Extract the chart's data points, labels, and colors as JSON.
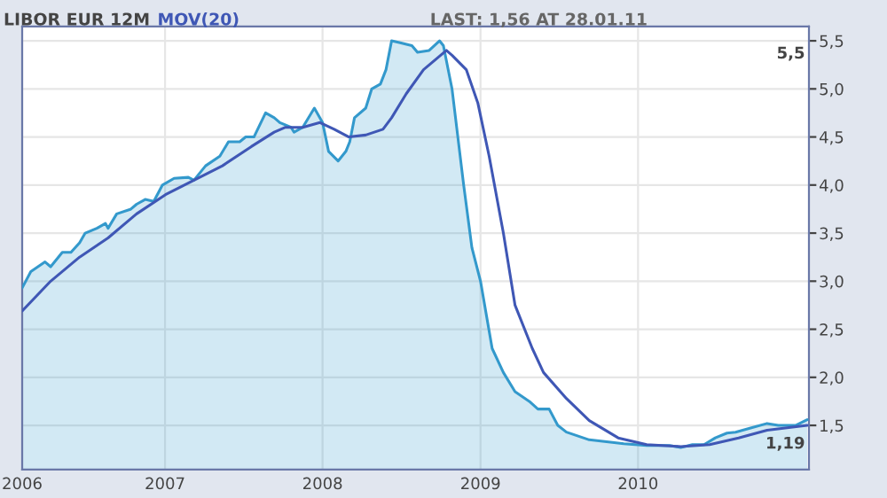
{
  "chart_data": {
    "type": "area",
    "title": "LIBOR EUR 12M",
    "annotations": [
      "LAST: 1,56 AT 28.01.11",
      "5,5",
      "1,19"
    ],
    "series": [
      {
        "name": null,
        "color": "#3399cc",
        "x": [
          "2006-02-04",
          "2006-02-24",
          "2006-03-29",
          "2006-04-11",
          "2006-05-08",
          "2006-05-28",
          "2006-06-17",
          "2006-06-30",
          "2006-07-27",
          "2006-08-16",
          "2006-08-22",
          "2006-09-11",
          "2006-10-14",
          "2006-10-27",
          "2006-11-16",
          "2006-12-06",
          "2006-12-26",
          "2007-01-22",
          "2007-02-24",
          "2007-03-09",
          "2007-04-05",
          "2007-05-08",
          "2007-05-28",
          "2007-06-23",
          "2007-07-07",
          "2007-07-26",
          "2007-08-22",
          "2007-09-11",
          "2007-09-24",
          "2007-10-20",
          "2007-10-27",
          "2007-11-16",
          "2007-12-13",
          "2008-01-01",
          "2008-01-15",
          "2008-02-06",
          "2008-02-24",
          "2008-03-04",
          "2008-03-15",
          "2008-04-10",
          "2008-04-24",
          "2008-05-14",
          "2008-05-27",
          "2008-06-09",
          "2008-06-29",
          "2008-07-26",
          "2008-08-08",
          "2008-09-04",
          "2008-09-28",
          "2008-10-07",
          "2008-10-27",
          "2008-11-23",
          "2008-12-12",
          "2009-01-01",
          "2009-01-28",
          "2009-02-23",
          "2009-03-22",
          "2009-04-24",
          "2009-05-14",
          "2009-06-09",
          "2009-06-29",
          "2009-07-19",
          "2009-09-10",
          "2009-10-20",
          "2009-11-29",
          "2010-01-21",
          "2010-03-15",
          "2010-04-10",
          "2010-05-07",
          "2010-06-03",
          "2010-06-29",
          "2010-07-26",
          "2010-08-15",
          "2010-09-17",
          "2010-10-27",
          "2010-11-22",
          "2011-01-01",
          "2011-01-28"
        ],
        "values": [
          2.93,
          3.1,
          3.2,
          3.15,
          3.3,
          3.3,
          3.4,
          3.5,
          3.55,
          3.6,
          3.55,
          3.7,
          3.75,
          3.8,
          3.85,
          3.83,
          4.0,
          4.07,
          4.08,
          4.05,
          4.2,
          4.3,
          4.45,
          4.45,
          4.5,
          4.5,
          4.75,
          4.7,
          4.65,
          4.6,
          4.55,
          4.6,
          4.8,
          4.65,
          4.35,
          4.25,
          4.35,
          4.45,
          4.7,
          4.8,
          5.0,
          5.05,
          5.2,
          5.5,
          5.48,
          5.45,
          5.38,
          5.4,
          5.5,
          5.45,
          5.0,
          4.0,
          3.35,
          3.0,
          2.3,
          2.05,
          1.85,
          1.75,
          1.67,
          1.67,
          1.5,
          1.43,
          1.35,
          1.33,
          1.31,
          1.29,
          1.29,
          1.27,
          1.3,
          1.3,
          1.37,
          1.42,
          1.43,
          1.47,
          1.52,
          1.5,
          1.5,
          1.56
        ]
      },
      {
        "name": "MOV(20)",
        "type": "line",
        "color": "#3f57b5",
        "x": [
          "2006-02-04",
          "2006-04-11",
          "2006-06-17",
          "2006-08-22",
          "2006-10-27",
          "2007-01-02",
          "2007-03-09",
          "2007-05-14",
          "2007-07-20",
          "2007-09-11",
          "2007-10-07",
          "2007-11-16",
          "2007-12-26",
          "2008-01-28",
          "2008-03-02",
          "2008-04-10",
          "2008-05-20",
          "2008-06-09",
          "2008-07-13",
          "2008-08-22",
          "2008-10-14",
          "2008-10-27",
          "2008-11-29",
          "2008-12-26",
          "2009-01-21",
          "2009-02-23",
          "2009-03-22",
          "2009-05-01",
          "2009-05-27",
          "2009-07-19",
          "2009-09-10",
          "2009-11-16",
          "2010-01-21",
          "2010-04-10",
          "2010-06-16",
          "2010-08-22",
          "2010-10-27",
          "2011-01-28"
        ],
        "values": [
          2.69,
          3.0,
          3.25,
          3.45,
          3.7,
          3.9,
          4.05,
          4.2,
          4.4,
          4.55,
          4.6,
          4.6,
          4.65,
          4.58,
          4.5,
          4.52,
          4.58,
          4.7,
          4.95,
          5.2,
          5.4,
          5.35,
          5.2,
          4.85,
          4.3,
          3.5,
          2.75,
          2.3,
          2.05,
          1.78,
          1.55,
          1.37,
          1.3,
          1.28,
          1.3,
          1.37,
          1.45,
          1.5
        ]
      }
    ],
    "xlim": [
      "2006-02-04",
      "2011-02-01"
    ],
    "xticks": [
      {
        "value": "2006-02-04",
        "label": "2006"
      },
      {
        "value": "2007-01-01",
        "label": "2007"
      },
      {
        "value": "2008-01-01",
        "label": "2008"
      },
      {
        "value": "2009-01-01",
        "label": "2009"
      },
      {
        "value": "2010-01-01",
        "label": "2010"
      }
    ],
    "ylim": [
      1.04,
      5.65
    ],
    "yticks": [
      {
        "value": 1.5,
        "label": "1,5"
      },
      {
        "value": 2.0,
        "label": "2,0"
      },
      {
        "value": 2.5,
        "label": "2,5"
      },
      {
        "value": 3.0,
        "label": "3,0"
      },
      {
        "value": 3.5,
        "label": "3,5"
      },
      {
        "value": 4.0,
        "label": "4,0"
      },
      {
        "value": 4.5,
        "label": "4,5"
      },
      {
        "value": 5.0,
        "label": "5,0"
      },
      {
        "value": 5.5,
        "label": "5,5"
      }
    ],
    "grid": true,
    "legend": "top left"
  }
}
